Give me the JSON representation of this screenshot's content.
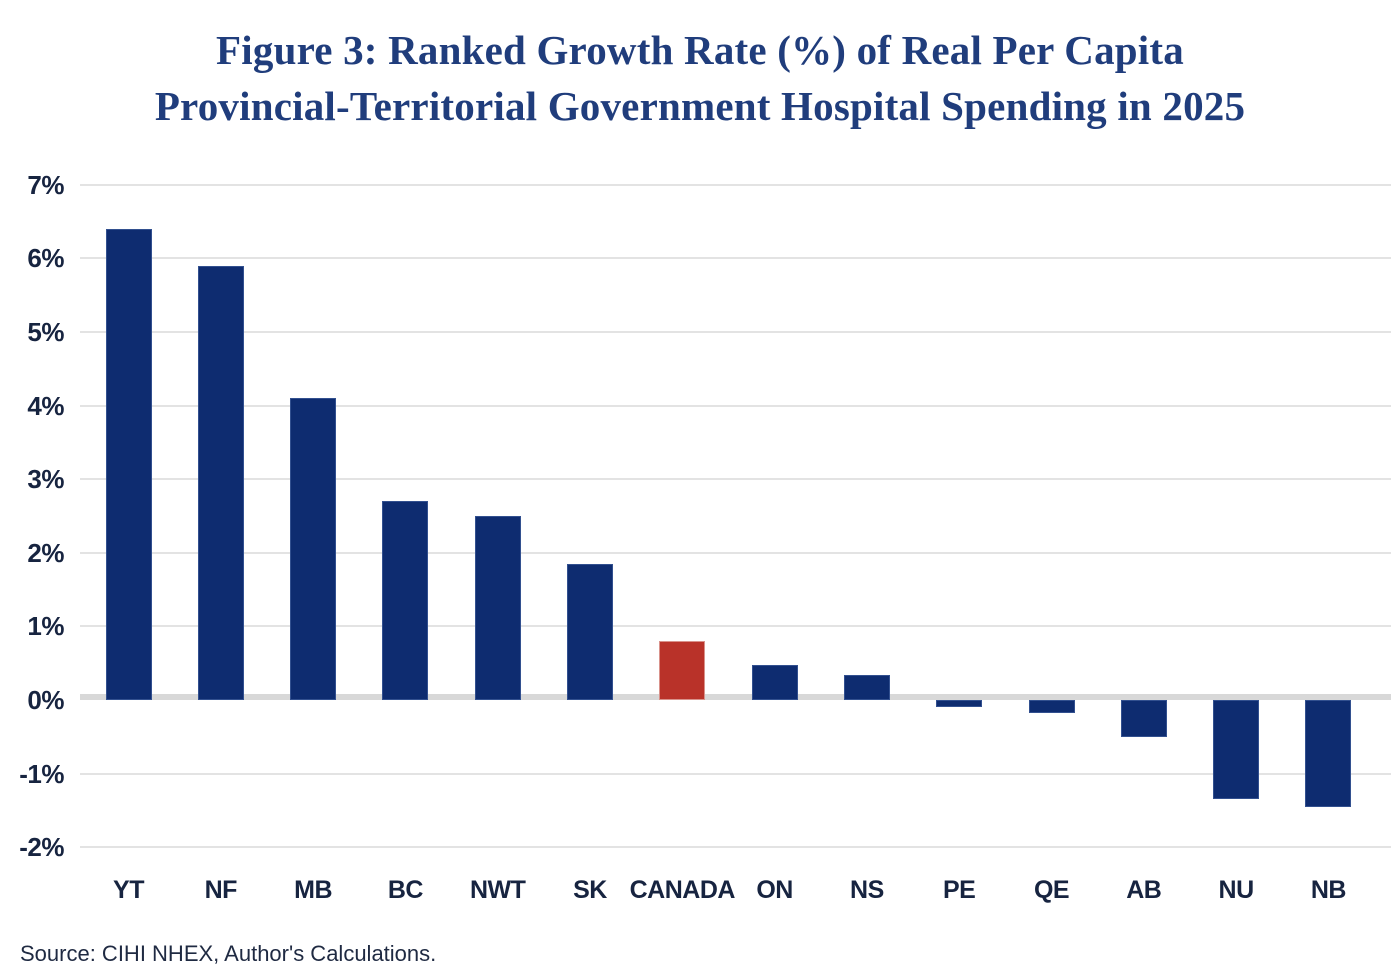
{
  "title": {
    "line1": "Figure 3: Ranked Growth Rate (%) of Real Per Capita",
    "line2": "Provincial-Territorial Government Hospital Spending in 2025"
  },
  "source_note": "Source: CIHI NHEX, Author's Calculations.",
  "colors": {
    "title": "#203d7c",
    "tick_text": "#172440",
    "source_text": "#1f2a42",
    "bar_navy": "#0e2c70",
    "bar_navy_border": "#32508f",
    "bar_red": "#b93229",
    "bar_red_border": "#d9928b",
    "gridline": "#e3e3e3",
    "zero_gridline": "#d8d8d8"
  },
  "chart_data": {
    "type": "bar",
    "title": "Figure 3: Ranked Growth Rate (%) of Real Per Capita Provincial-Territorial Government Hospital Spending in 2025",
    "categories": [
      "YT",
      "NF",
      "MB",
      "BC",
      "NWT",
      "SK",
      "CANADA",
      "ON",
      "NS",
      "PE",
      "QE",
      "AB",
      "NU",
      "NB"
    ],
    "values": [
      6.4,
      5.9,
      4.1,
      2.7,
      2.5,
      1.85,
      0.8,
      0.48,
      0.34,
      -0.1,
      -0.18,
      -0.5,
      -1.35,
      -1.45
    ],
    "highlight_category": "CANADA",
    "highlight_index": 6,
    "xlabel": "",
    "ylabel": "",
    "ylim": [
      -2,
      7
    ],
    "ytick_values": [
      7,
      6,
      5,
      4,
      3,
      2,
      1,
      0,
      -1,
      -2
    ],
    "ytick_labels": [
      "7%",
      "6%",
      "5%",
      "4%",
      "3%",
      "2%",
      "1%",
      "0%",
      "-1%",
      "-2%"
    ],
    "grid": true,
    "legend": false,
    "units": "%"
  }
}
